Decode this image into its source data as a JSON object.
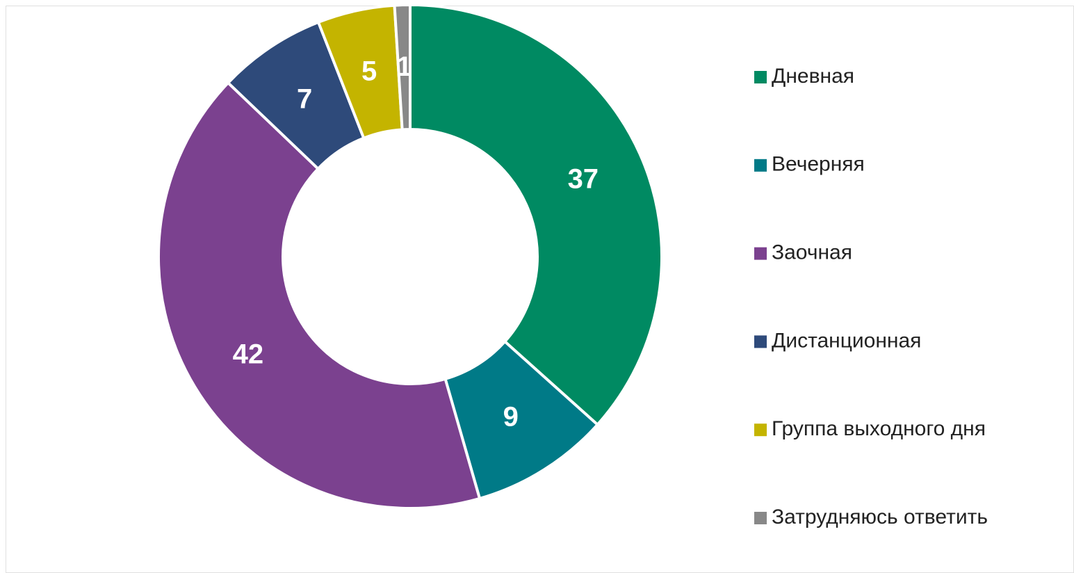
{
  "chart_data": {
    "type": "donut",
    "categories": [
      "Дневная",
      "Вечерняя",
      "Заочная",
      "Дистанционная",
      "Группа выходного дня",
      "Затрудняюсь ответить"
    ],
    "values": [
      37,
      9,
      42,
      7,
      5,
      1
    ],
    "colors": [
      "#008a62",
      "#007a87",
      "#7b418f",
      "#2e4a7a",
      "#c4b400",
      "#888888"
    ],
    "legend": "right"
  }
}
